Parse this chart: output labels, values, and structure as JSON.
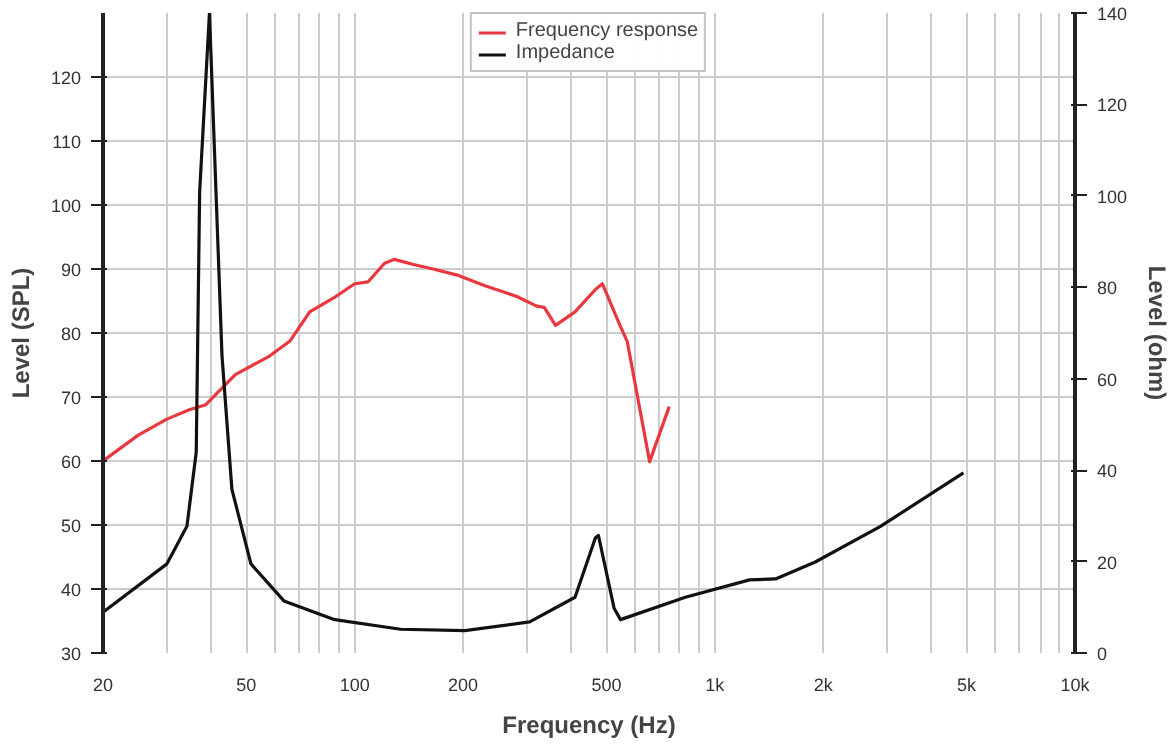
{
  "chart_data": {
    "type": "line",
    "xlabel": "Frequency (Hz)",
    "ylabel": "Level (SPL)",
    "y2label": "Level (ohm)",
    "xlim": [
      20,
      10000
    ],
    "ylim": [
      30,
      130
    ],
    "y2lim": [
      0,
      140
    ],
    "xticks": [
      20,
      {
        "value": 30,
        "label": null
      },
      {
        "value": 40,
        "label": null
      },
      50,
      {
        "value": 60,
        "label": null
      },
      {
        "value": 70,
        "label": null
      },
      {
        "value": 80,
        "label": null
      },
      {
        "value": 90,
        "label": null
      },
      100,
      200,
      {
        "value": 300,
        "label": null
      },
      {
        "value": 400,
        "label": null
      },
      500,
      {
        "value": 600,
        "label": null
      },
      {
        "value": 700,
        "label": null
      },
      {
        "value": 800,
        "label": null
      },
      {
        "value": 900,
        "label": null
      },
      {
        "value": 1000,
        "label": "1k"
      },
      {
        "value": 2000,
        "label": "2k"
      },
      {
        "value": 3000,
        "label": null
      },
      {
        "value": 4000,
        "label": null
      },
      {
        "value": 5000,
        "label": "5k"
      },
      {
        "value": 6000,
        "label": null
      },
      {
        "value": 7000,
        "label": null
      },
      {
        "value": 8000,
        "label": null
      },
      {
        "value": 9000,
        "label": null
      },
      {
        "value": 10000,
        "label": "10k"
      }
    ],
    "yticks": [
      30,
      40,
      50,
      60,
      70,
      80,
      90,
      100,
      110,
      120
    ],
    "y2ticks": [
      0,
      20,
      40,
      60,
      80,
      100,
      120,
      140
    ],
    "log": "x",
    "grid": true,
    "legend": "top",
    "marker": "none",
    "line_style": "solid",
    "series": [
      {
        "name": "Frequency response",
        "color": "#e8383d",
        "x": [
          20,
          25,
          30,
          34.7,
          38.6,
          46.6,
          58,
          66,
          75,
          88.6,
          100,
          109,
          121,
          128.7,
          145.6,
          165,
          194,
          230,
          282,
          320,
          336,
          361,
          409,
          466,
          487,
          547,
          571,
          659,
          747
        ],
        "values": [
          60,
          64,
          66.5,
          68,
          68.8,
          73.5,
          76.4,
          78.7,
          83.3,
          85.7,
          87.7,
          88,
          90.9,
          91.5,
          90.7,
          90,
          89,
          87.4,
          85.7,
          84.2,
          84,
          81.2,
          83.3,
          86.8,
          87.7,
          81,
          78.7,
          59.9,
          68.5
        ]
      },
      {
        "name": "Impedance",
        "color": "#111111",
        "axis": "y2",
        "x": [
          20,
          30.1,
          34.2,
          36.3,
          37.1,
          39.5,
          42.8,
          45.6,
          51.5,
          63.6,
          88,
          134,
          202,
          306,
          409,
          466,
          475,
          525,
          547,
          828,
          1248,
          1474,
          1900,
          2883,
          4900
        ],
        "values": [
          8.9,
          19.5,
          27.7,
          43.9,
          100.8,
          140,
          65,
          35.8,
          19.5,
          11.4,
          7.3,
          5.2,
          4.9,
          6.8,
          12.2,
          25.2,
          25.7,
          9.8,
          7.3,
          12.2,
          16,
          16.2,
          19.9,
          27.7,
          39.4
        ]
      }
    ]
  }
}
